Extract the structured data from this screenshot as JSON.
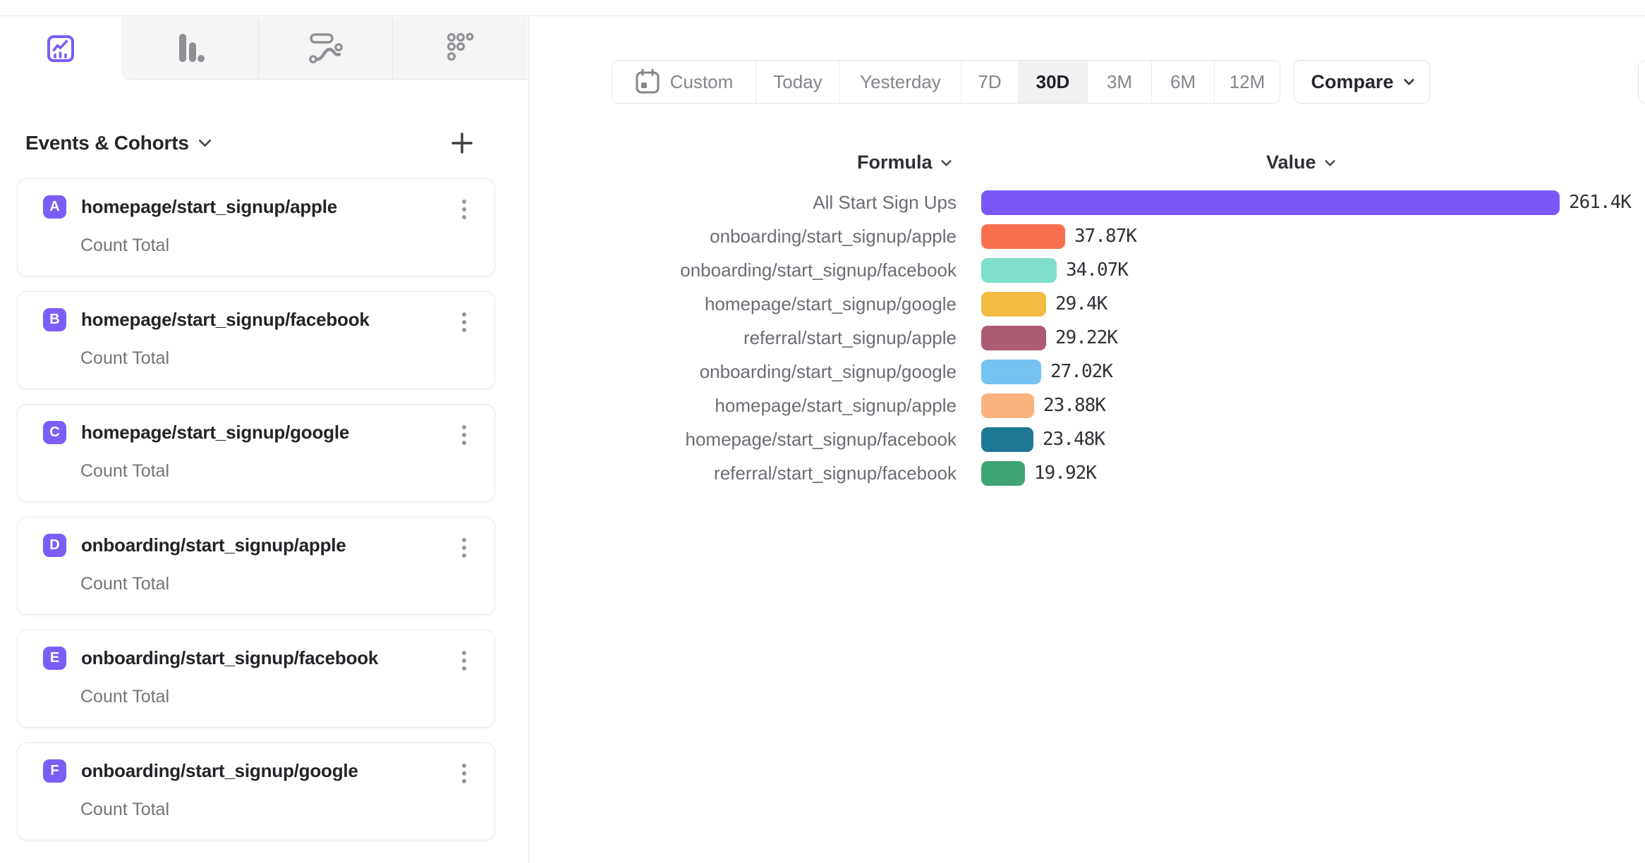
{
  "brand": {
    "accent": "#7856ff",
    "badge_color": "#7c5ef6"
  },
  "tabs": {
    "items": [
      {
        "icon": "insights-line-chart-icon",
        "selected": true
      },
      {
        "icon": "bar-chart-icon",
        "selected": false
      },
      {
        "icon": "flows-icon",
        "selected": false
      },
      {
        "icon": "retention-dots-icon",
        "selected": false
      }
    ]
  },
  "sidebar": {
    "header": {
      "title": "Events & Cohorts",
      "add_button": "+"
    },
    "events": [
      {
        "badge": "A",
        "title": "homepage/start_signup/apple",
        "subtitle": "Count Total"
      },
      {
        "badge": "B",
        "title": "homepage/start_signup/facebook",
        "subtitle": "Count Total"
      },
      {
        "badge": "C",
        "title": "homepage/start_signup/google",
        "subtitle": "Count Total"
      },
      {
        "badge": "D",
        "title": "onboarding/start_signup/apple",
        "subtitle": "Count Total"
      },
      {
        "badge": "E",
        "title": "onboarding/start_signup/facebook",
        "subtitle": "Count Total"
      },
      {
        "badge": "F",
        "title": "onboarding/start_signup/google",
        "subtitle": "Count Total"
      }
    ]
  },
  "toolbar": {
    "date_ranges": [
      "Custom",
      "Today",
      "Yesterday",
      "7D",
      "30D",
      "3M",
      "6M",
      "12M"
    ],
    "selected_range": "30D",
    "compare_label": "Compare"
  },
  "chart_data": {
    "type": "bar",
    "orientation": "horizontal",
    "headers": {
      "formula": "Formula",
      "value": "Value"
    },
    "categories": [
      "All Start Sign Ups",
      "onboarding/start_signup/apple",
      "onboarding/start_signup/facebook",
      "homepage/start_signup/google",
      "referral/start_signup/apple",
      "onboarding/start_signup/google",
      "homepage/start_signup/apple",
      "homepage/start_signup/facebook",
      "referral/start_signup/facebook"
    ],
    "values": [
      261400,
      37870,
      34070,
      29400,
      29220,
      27020,
      23880,
      23480,
      19920
    ],
    "value_labels": [
      "261.4K",
      "37.87K",
      "34.07K",
      "29.4K",
      "29.22K",
      "27.02K",
      "23.88K",
      "23.48K",
      "19.92K"
    ],
    "colors": [
      "#7a58f6",
      "#f9704e",
      "#7edec9",
      "#f4bb42",
      "#ad5b72",
      "#74c1f2",
      "#fab27e",
      "#1e7795",
      "#3fa474"
    ],
    "xlim": [
      0,
      261400
    ],
    "grid": false,
    "legend": "none"
  }
}
